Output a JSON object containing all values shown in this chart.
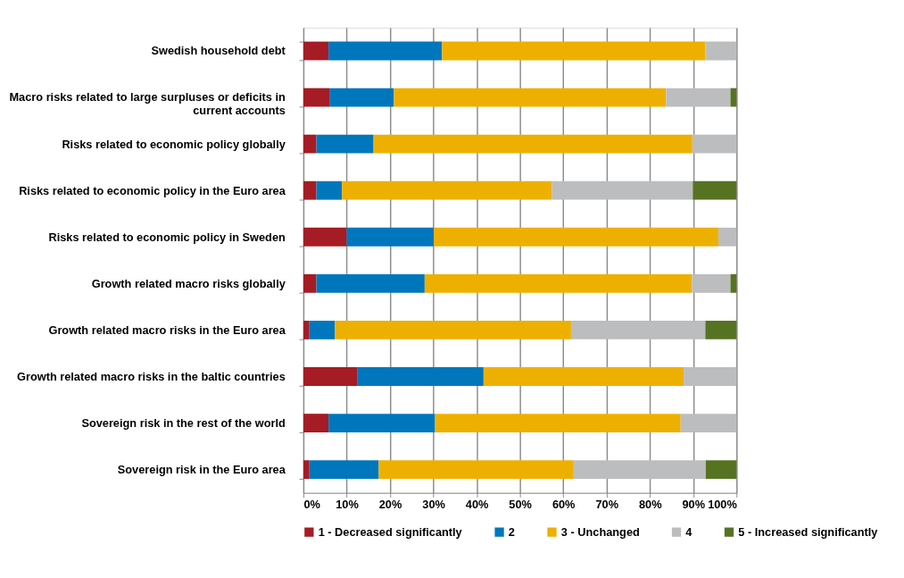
{
  "chart_data": {
    "type": "bar",
    "orientation": "horizontal",
    "stacked": true,
    "categories": [
      "Swedish household debt",
      "Macro risks related to large surpluses or deficits in current accounts",
      "Risks related to economic policy globally",
      "Risks related to economic policy in the Euro area",
      "Risks related to economic policy in Sweden",
      "Growth related macro risks globally",
      "Growth related macro risks in the Euro area",
      "Growth related macro risks in the baltic countries",
      "Sovereign risk in the rest of the world",
      "Sovereign risk in the Euro area"
    ],
    "series": [
      {
        "name": "1 - Decreased significantly",
        "color": "#a51c24",
        "values": [
          5.8,
          6.0,
          3.0,
          3.0,
          10.0,
          3.0,
          1.4,
          12.4,
          5.8,
          1.4
        ]
      },
      {
        "name": "2",
        "color": "#0077bd",
        "values": [
          26.2,
          14.9,
          13.2,
          5.9,
          20.1,
          25.0,
          5.9,
          29.2,
          24.6,
          16.0
        ]
      },
      {
        "name": "3 - Unchanged",
        "color": "#eeb000",
        "values": [
          60.8,
          62.8,
          73.6,
          48.5,
          65.7,
          61.7,
          54.5,
          46.2,
          56.7,
          45.0
        ]
      },
      {
        "name": "4",
        "color": "#bcbdbf",
        "values": [
          7.2,
          14.9,
          10.2,
          32.5,
          4.2,
          8.9,
          31.0,
          12.2,
          12.9,
          30.5
        ]
      },
      {
        "name": "5 - Increased significantly",
        "color": "#567322",
        "values": [
          0,
          1.4,
          0,
          10.1,
          0,
          1.4,
          7.2,
          0,
          0,
          7.1
        ]
      }
    ],
    "xlim": [
      0,
      100
    ],
    "xticks": [
      {
        "value": 0,
        "label": "0%"
      },
      {
        "value": 10,
        "label": "10%"
      },
      {
        "value": 20,
        "label": "20%"
      },
      {
        "value": 30,
        "label": "30%"
      },
      {
        "value": 40,
        "label": "40%"
      },
      {
        "value": 50,
        "label": "50%"
      },
      {
        "value": 60,
        "label": "60%"
      },
      {
        "value": 70,
        "label": "70%"
      },
      {
        "value": 80,
        "label": "80%"
      },
      {
        "value": 90,
        "label": "90%"
      },
      {
        "value": 100,
        "label": "100%"
      }
    ],
    "grid": "x",
    "legend": "bottom"
  }
}
